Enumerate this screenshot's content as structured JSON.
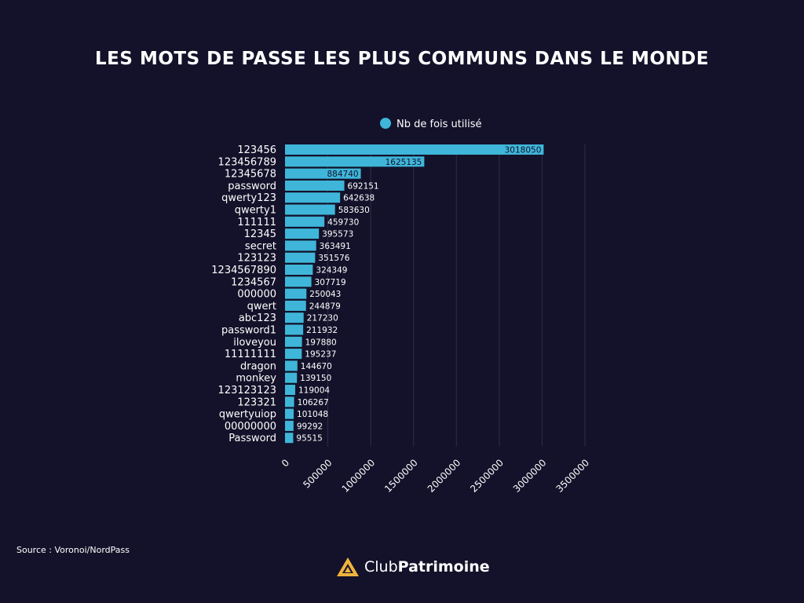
{
  "title": "LES MOTS DE PASSE LES PLUS COMMUNS DANS LE MONDE",
  "source": "Source : Voronoi/NordPass",
  "brand": {
    "part1": "Club",
    "part2": "Patrimoine"
  },
  "colors": {
    "background": "#13122a",
    "bar": "#3fb6d9",
    "grid": "#2e2d4a",
    "text": "#ffffff",
    "logo": "#f2b33d"
  },
  "chart_data": {
    "type": "bar",
    "orientation": "horizontal",
    "legend": {
      "label": "Nb de fois utilisé",
      "position": "top"
    },
    "categories": [
      "123456",
      "123456789",
      "12345678",
      "password",
      "qwerty123",
      "qwerty1",
      "111111",
      "12345",
      "secret",
      "123123",
      "1234567890",
      "1234567",
      "000000",
      "qwert",
      "abc123",
      "password1",
      "iloveyou",
      "11111111",
      "dragon",
      "monkey",
      "123123123",
      "123321",
      "qwertyuiop",
      "00000000",
      "Password"
    ],
    "values": [
      3018050,
      1625135,
      884740,
      692151,
      642638,
      583630,
      459730,
      395573,
      363491,
      351576,
      324349,
      307719,
      250043,
      244879,
      217230,
      211932,
      197880,
      195237,
      144670,
      139150,
      119004,
      106267,
      101048,
      99292,
      95515
    ],
    "value_labels": [
      "3018050",
      "1625135",
      "884740",
      "692151",
      "642638",
      "583630",
      "459730",
      "395573",
      "363491",
      "351576",
      "324349",
      "307719",
      "250043",
      "244879",
      "217230",
      "211932",
      "197880",
      "195237",
      "144670",
      "139150",
      "119004",
      "106267",
      "101048",
      "99292",
      "95515"
    ],
    "xlim": [
      0,
      3500000
    ],
    "xticks": [
      0,
      500000,
      1000000,
      1500000,
      2000000,
      2500000,
      3000000,
      3500000
    ],
    "xtick_labels": [
      "0",
      "500000",
      "1000000",
      "1500000",
      "2000000",
      "2500000",
      "3000000",
      "3500000"
    ],
    "grid": "vertical"
  }
}
